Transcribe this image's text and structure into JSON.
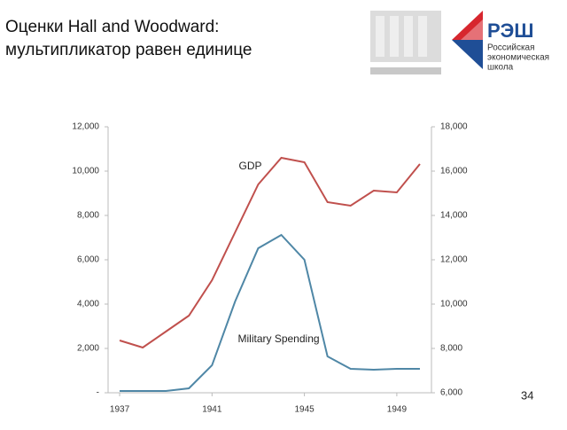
{
  "title": [
    "Оценки Hall and Woodward:",
    "мультипликатор равен единице"
  ],
  "logo": {
    "name": "РЭШ",
    "lines": [
      "Российская",
      "экономическая",
      "школа"
    ]
  },
  "page_number": "34",
  "chart_data": {
    "type": "line",
    "x": [
      1937,
      1938,
      1939,
      1940,
      1941,
      1942,
      1943,
      1944,
      1945,
      1946,
      1947,
      1948,
      1949,
      1950
    ],
    "xlim": [
      1936.5,
      1950.5
    ],
    "xticks": [
      1937,
      1941,
      1945,
      1949
    ],
    "ylim": [
      0,
      12000
    ],
    "yticks": [
      {
        "value": 0,
        "label": "-"
      },
      {
        "value": 2000,
        "label": "2,000"
      },
      {
        "value": 4000,
        "label": "4,000"
      },
      {
        "value": 6000,
        "label": "6,000"
      },
      {
        "value": 8000,
        "label": "8,000"
      },
      {
        "value": 10000,
        "label": "10,000"
      },
      {
        "value": 12000,
        "label": "12,000"
      }
    ],
    "y2lim": [
      6000,
      18000
    ],
    "y2ticks": [
      {
        "value": 6000,
        "label": "6,000"
      },
      {
        "value": 8000,
        "label": "8,000"
      },
      {
        "value": 10000,
        "label": "10,000"
      },
      {
        "value": 12000,
        "label": "12,000"
      },
      {
        "value": 14000,
        "label": "14,000"
      },
      {
        "value": 16000,
        "label": "16,000"
      },
      {
        "value": 18000,
        "label": "18,000"
      }
    ],
    "series": [
      {
        "name": "GDP",
        "color": "#c0504d",
        "axis": "y2",
        "values": [
          8360,
          8040,
          8760,
          9480,
          11080,
          13240,
          15400,
          16600,
          16400,
          14600,
          14440,
          15120,
          15040,
          16320
        ]
      },
      {
        "name": "Military Spending",
        "color": "#4f87a6",
        "values": [
          80,
          80,
          80,
          200,
          1240,
          4120,
          6520,
          7120,
          6000,
          1640,
          1080,
          1040,
          1080,
          1080
        ]
      }
    ]
  }
}
